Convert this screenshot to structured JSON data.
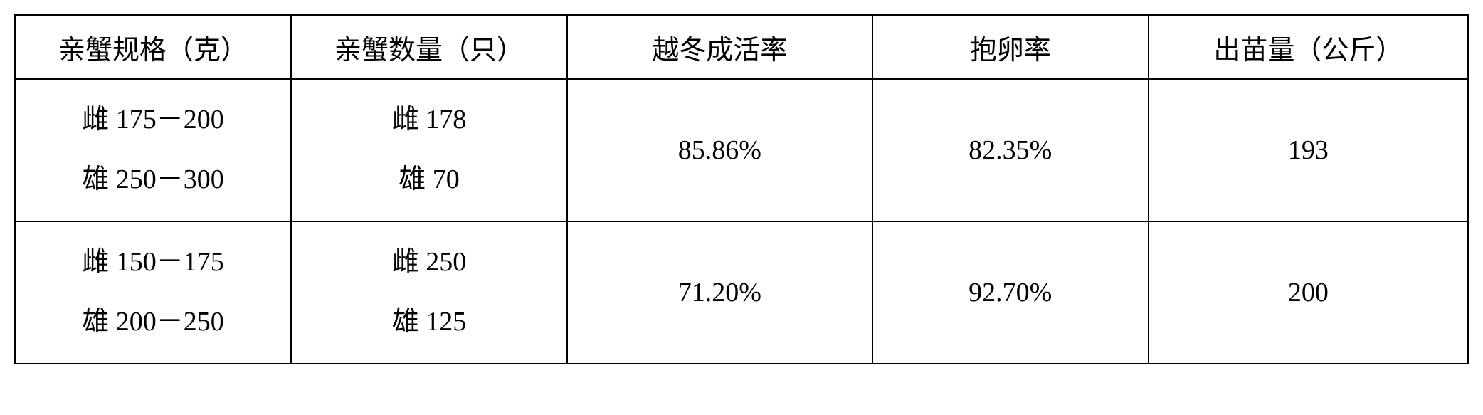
{
  "table": {
    "type": "table",
    "background_color": "#ffffff",
    "border_color": "#000000",
    "text_color": "#000000",
    "font_size_pt": 28,
    "columns": [
      {
        "label": "亲蟹规格（克）",
        "width_pct": 19,
        "align": "center"
      },
      {
        "label": "亲蟹数量（只）",
        "width_pct": 19,
        "align": "center"
      },
      {
        "label": "越冬成活率",
        "width_pct": 21,
        "align": "center"
      },
      {
        "label": "抱卵率",
        "width_pct": 19,
        "align": "center"
      },
      {
        "label": "出苗量（公斤）",
        "width_pct": 22,
        "align": "center"
      }
    ],
    "rows": [
      {
        "spec_female": "雌 175－200",
        "spec_male": "雄 250－300",
        "count_female": "雌 178",
        "count_male": "雄 70",
        "survival_rate": "85.86%",
        "egg_rate": "82.35%",
        "output": "193"
      },
      {
        "spec_female": "雌 150－175",
        "spec_male": "雄 200－250",
        "count_female": "雌 250",
        "count_male": "雄 125",
        "survival_rate": "71.20%",
        "egg_rate": "92.70%",
        "output": "200"
      }
    ]
  }
}
